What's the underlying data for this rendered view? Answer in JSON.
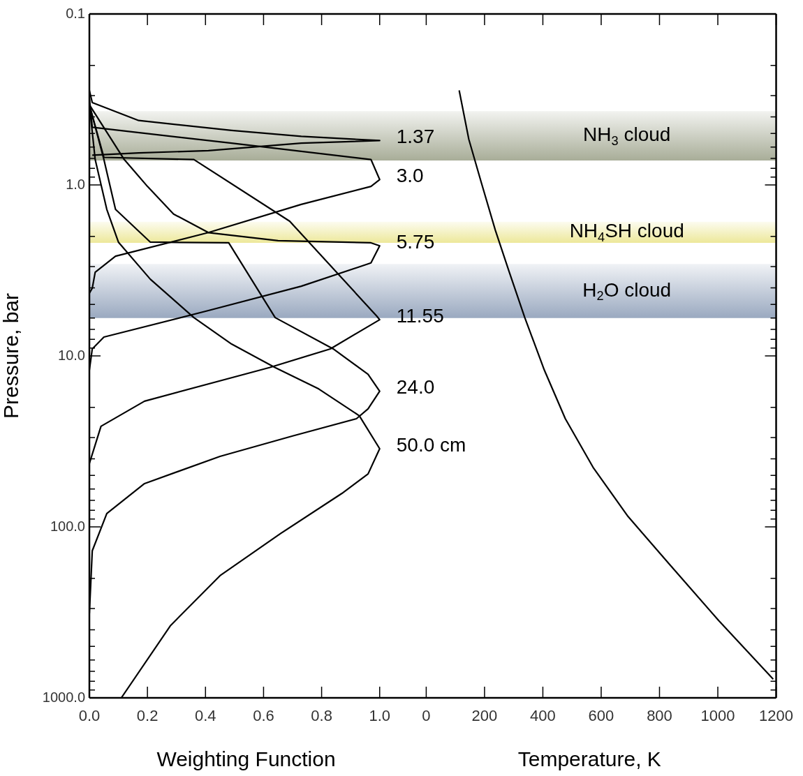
{
  "chart_data": [
    {
      "type": "line",
      "xlabel": "Weighting Function",
      "ylabel": "Pressure, bar",
      "log": "y",
      "marker": "none",
      "xlim": [
        0,
        1.08
      ],
      "xticks": [
        {
          "value": 0,
          "label": "0.0"
        },
        0.2,
        0.4,
        0.6,
        0.8,
        {
          "value": 1,
          "label": "1.0"
        }
      ],
      "ylim": [
        1000,
        0.1
      ],
      "yticks": [
        0.1,
        {
          "value": 0.2,
          "label": null
        },
        {
          "value": 0.3,
          "label": null
        },
        {
          "value": 0.4,
          "label": null
        },
        {
          "value": 0.5,
          "label": null
        },
        {
          "value": 0.6,
          "label": null
        },
        {
          "value": 0.7,
          "label": null
        },
        {
          "value": 0.8,
          "label": null
        },
        {
          "value": 0.9,
          "label": null
        },
        {
          "value": 1,
          "label": "1.0"
        },
        {
          "value": 2,
          "label": null
        },
        {
          "value": 3,
          "label": null
        },
        {
          "value": 4,
          "label": null
        },
        {
          "value": 5,
          "label": null
        },
        {
          "value": 6,
          "label": null
        },
        {
          "value": 7,
          "label": null
        },
        {
          "value": 8,
          "label": null
        },
        {
          "value": 9,
          "label": null
        },
        {
          "value": 10,
          "label": "10.0"
        },
        {
          "value": 20,
          "label": null
        },
        {
          "value": 30,
          "label": null
        },
        {
          "value": 40,
          "label": null
        },
        {
          "value": 50,
          "label": null
        },
        {
          "value": 60,
          "label": null
        },
        {
          "value": 70,
          "label": null
        },
        {
          "value": 80,
          "label": null
        },
        {
          "value": 90,
          "label": null
        },
        {
          "value": 100,
          "label": "100.0"
        },
        {
          "value": 200,
          "label": null
        },
        {
          "value": 300,
          "label": null
        },
        {
          "value": 400,
          "label": null
        },
        {
          "value": 500,
          "label": null
        },
        {
          "value": 600,
          "label": null
        },
        {
          "value": 700,
          "label": null
        },
        {
          "value": 800,
          "label": null
        },
        {
          "value": 900,
          "label": null
        },
        {
          "value": 1000,
          "label": "1000.0"
        }
      ],
      "bands": [
        {
          "axis": "y",
          "from": 0.37,
          "to": 0.72,
          "color": "#a8ad98"
        },
        {
          "axis": "y",
          "from": 1.64,
          "to": 2.18,
          "color": "#ede89a"
        },
        {
          "axis": "y",
          "from": 2.9,
          "to": 6.0,
          "color": "#9aa9c0"
        }
      ],
      "series": [
        {
          "name": "1.37",
          "color": "#000000",
          "x": [
            0,
            0.01,
            0.17,
            0.49,
            0.73,
            1.0,
            0.73,
            0.41,
            0.17,
            0.01
          ],
          "values": [
            0.28,
            0.33,
            0.42,
            0.48,
            0.52,
            0.55,
            0.57,
            0.63,
            0.65,
            0.67
          ]
        },
        {
          "name": "3.0",
          "color": "#000000",
          "x": [
            0,
            0.01,
            0.49,
            0.97,
            1.0,
            0.97,
            0.73,
            0.41,
            0.09,
            0.02,
            0.01,
            0
          ],
          "values": [
            0.31,
            0.46,
            0.57,
            0.71,
            0.93,
            1.02,
            1.3,
            1.9,
            2.61,
            3.24,
            4.02,
            4.3
          ]
        },
        {
          "name": "5.75",
          "color": "#000000",
          "x": [
            0,
            0.12,
            0.2,
            0.29,
            0.41,
            0.65,
            0.97,
            1.0,
            0.97,
            0.73,
            0.41,
            0.05,
            0.01,
            0
          ],
          "values": [
            0.34,
            0.71,
            1.02,
            1.48,
            1.9,
            2.12,
            2.18,
            2.27,
            2.86,
            3.91,
            5.43,
            7.76,
            9.1,
            12.1
          ]
        },
        {
          "name": "11.55",
          "color": "#000000",
          "x": [
            0,
            0.05,
            0.36,
            0.69,
            0.99,
            1.0,
            0.83,
            0.62,
            0.19,
            0.04,
            0
          ],
          "values": [
            0.34,
            0.69,
            0.71,
            1.63,
            5.85,
            6.14,
            9.1,
            11.7,
            18.4,
            25.8,
            42.6
          ]
        },
        {
          "name": "24.0",
          "color": "#000000",
          "x": [
            0,
            0.05,
            0.09,
            0.21,
            0.48,
            0.64,
            0.84,
            0.96,
            1.0,
            0.96,
            0.92,
            0.7,
            0.45,
            0.19,
            0.06,
            0.01,
            0
          ],
          "values": [
            0.34,
            0.71,
            1.39,
            2.16,
            2.18,
            5.97,
            9.1,
            12.8,
            16.1,
            20.4,
            23.3,
            29.4,
            38.7,
            55.8,
            83.6,
            138,
            321
          ]
        },
        {
          "name": "50.0 cm",
          "color": "#000000",
          "x": [
            0,
            0.02,
            0.06,
            0.1,
            0.21,
            0.36,
            0.49,
            0.64,
            0.79,
            0.93,
            1.0,
            0.96,
            0.87,
            0.66,
            0.45,
            0.28,
            0.11
          ],
          "values": [
            0.34,
            0.71,
            1.39,
            2.16,
            3.56,
            5.97,
            8.53,
            11.7,
            15.6,
            22.4,
            34.9,
            49.0,
            63.7,
            109,
            193,
            377,
            1000
          ]
        }
      ]
    },
    {
      "type": "line",
      "xlabel": "Temperature, K",
      "log": "y",
      "marker": "none",
      "tick_labels": "x",
      "xlim": [
        -80,
        1200
      ],
      "xticks": [
        0,
        200,
        400,
        600,
        800,
        1000,
        1200
      ],
      "ylim": [
        1000,
        0.1
      ],
      "yticks": [
        0.1,
        {
          "value": 0.2,
          "label": null
        },
        {
          "value": 0.3,
          "label": null
        },
        {
          "value": 0.4,
          "label": null
        },
        {
          "value": 0.5,
          "label": null
        },
        {
          "value": 0.6,
          "label": null
        },
        {
          "value": 0.7,
          "label": null
        },
        {
          "value": 0.8,
          "label": null
        },
        {
          "value": 0.9,
          "label": null
        },
        1,
        {
          "value": 2,
          "label": null
        },
        {
          "value": 3,
          "label": null
        },
        {
          "value": 4,
          "label": null
        },
        {
          "value": 5,
          "label": null
        },
        {
          "value": 6,
          "label": null
        },
        {
          "value": 7,
          "label": null
        },
        {
          "value": 8,
          "label": null
        },
        {
          "value": 9,
          "label": null
        },
        10,
        {
          "value": 20,
          "label": null
        },
        {
          "value": 30,
          "label": null
        },
        {
          "value": 40,
          "label": null
        },
        {
          "value": 50,
          "label": null
        },
        {
          "value": 60,
          "label": null
        },
        {
          "value": 70,
          "label": null
        },
        {
          "value": 80,
          "label": null
        },
        {
          "value": 90,
          "label": null
        },
        100,
        {
          "value": 200,
          "label": null
        },
        {
          "value": 300,
          "label": null
        },
        {
          "value": 400,
          "label": null
        },
        {
          "value": 500,
          "label": null
        },
        {
          "value": 600,
          "label": null
        },
        {
          "value": 700,
          "label": null
        },
        {
          "value": 800,
          "label": null
        },
        {
          "value": 900,
          "label": null
        },
        1000
      ],
      "bands": [
        {
          "axis": "y",
          "from": 0.37,
          "to": 0.72,
          "color": "#a8ad98",
          "label": "NH$_{3}$ cloud"
        },
        {
          "axis": "y",
          "from": 1.64,
          "to": 2.18,
          "color": "#ede89a",
          "label": "NH$_{4}$SH cloud"
        },
        {
          "axis": "y",
          "from": 2.9,
          "to": 6.0,
          "color": "#9aa9c0",
          "label": "H$_{2}$O cloud"
        }
      ],
      "series": [
        {
          "color": "#000000",
          "x": [
            113,
            146,
            189,
            237,
            285,
            338,
            405,
            477,
            572,
            692,
            836,
            1003,
            1190
          ],
          "values": [
            0.28,
            0.54,
            0.97,
            1.84,
            3.24,
            5.97,
            12.1,
            23.3,
            44.8,
            86.9,
            167,
            353,
            778
          ]
        }
      ]
    }
  ]
}
